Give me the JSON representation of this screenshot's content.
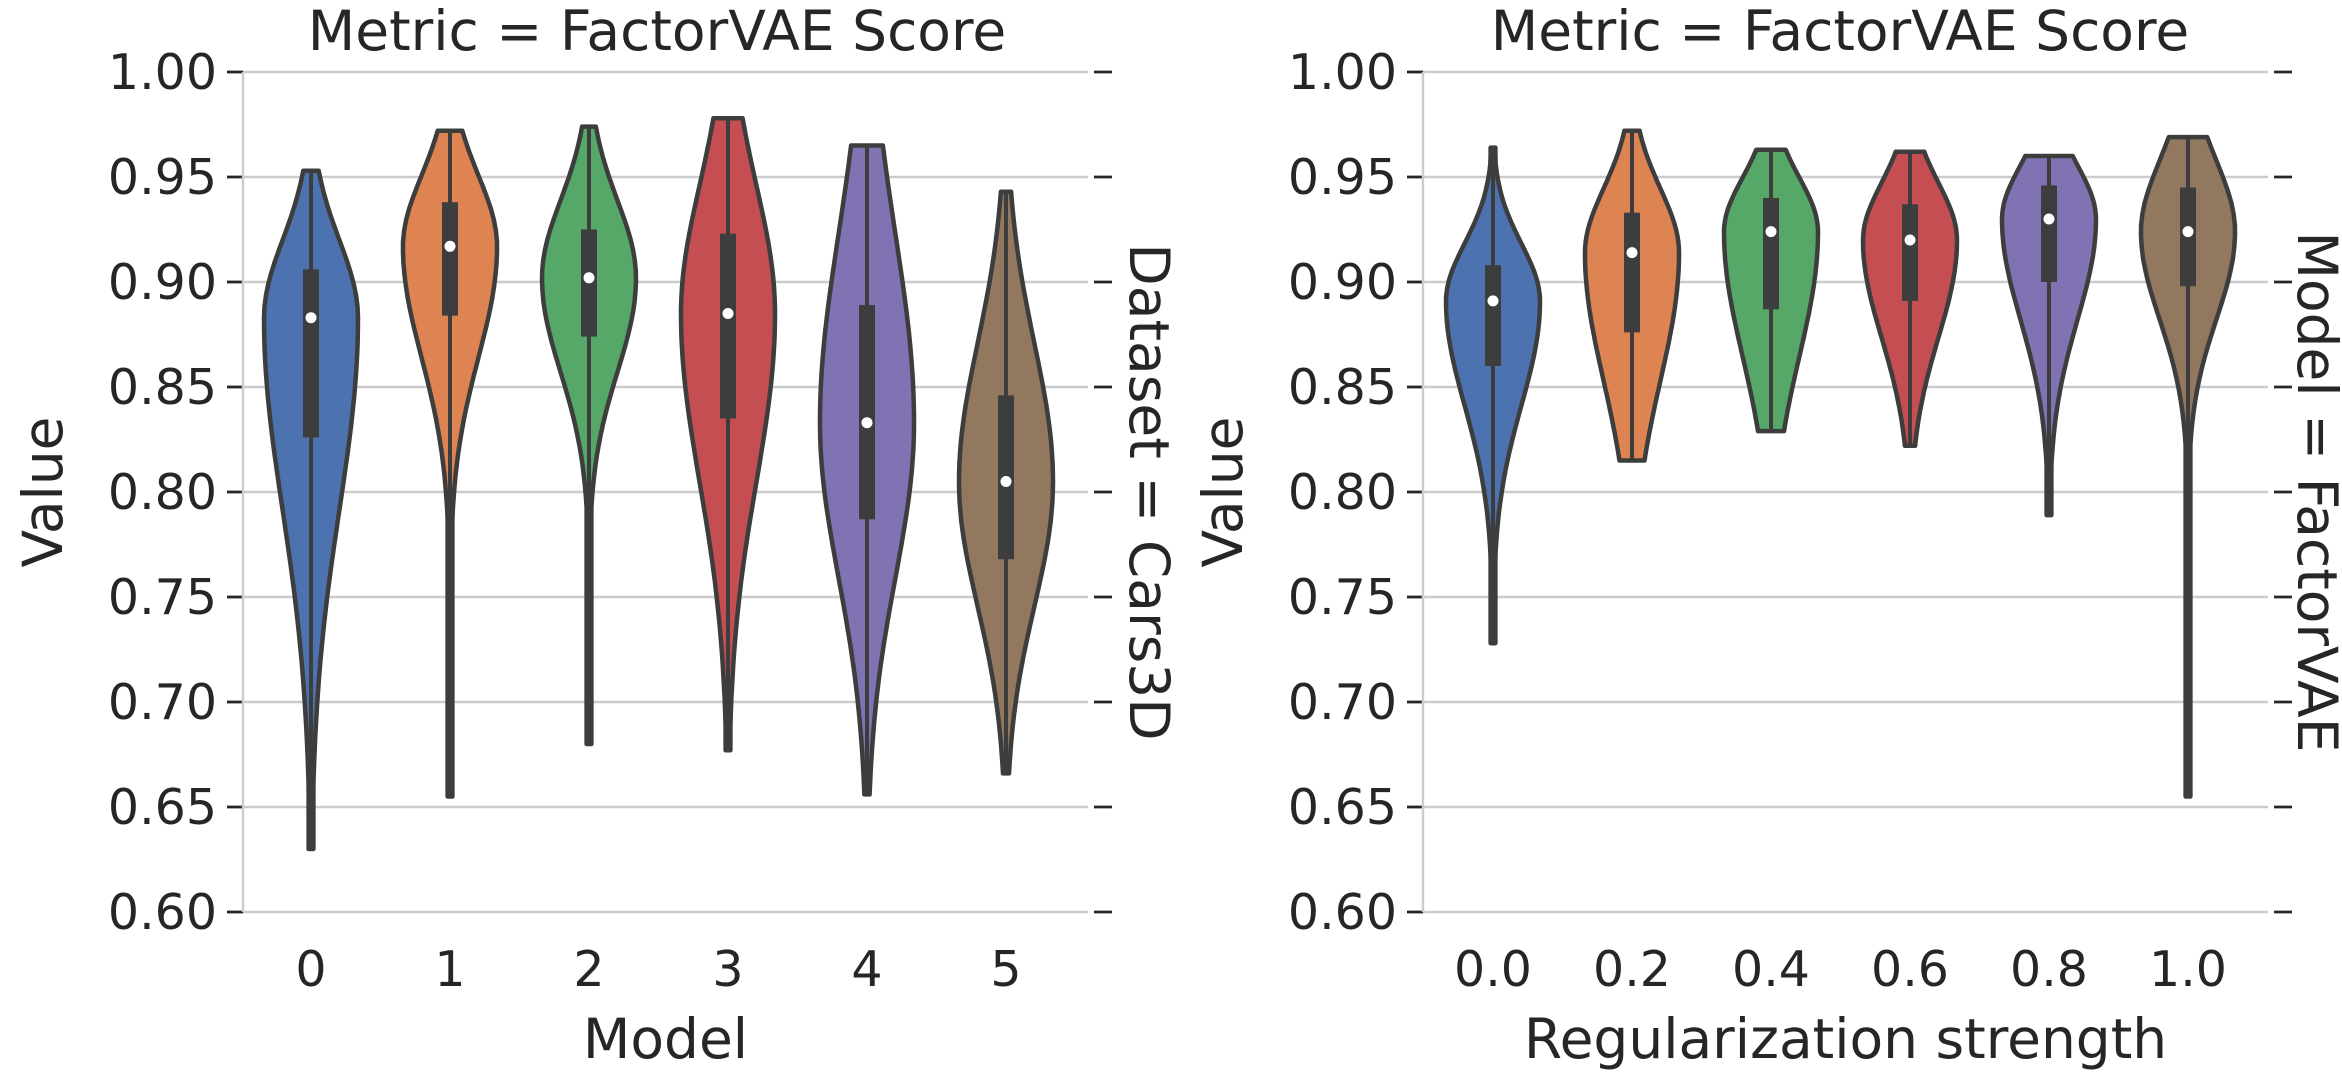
{
  "chart_data": [
    {
      "type": "violin",
      "title": "Metric = FactorVAE Score",
      "xlabel": "Model",
      "ylabel": "Value",
      "row_label": "Dataset = Cars3D",
      "ylim": [
        0.6,
        1.0
      ],
      "y_ticks": [
        "0.60",
        "0.65",
        "0.70",
        "0.75",
        "0.80",
        "0.85",
        "0.90",
        "0.95",
        "1.00"
      ],
      "grid": "horizontal",
      "categories": [
        "0",
        "1",
        "2",
        "3",
        "4",
        "5"
      ],
      "colors": [
        "#4c72b0",
        "#dd8452",
        "#55a868",
        "#c44e52",
        "#8172b3",
        "#937860"
      ],
      "series": [
        {
          "category": "0",
          "min": 0.63,
          "q1": 0.826,
          "median": 0.883,
          "q3": 0.906,
          "max": 0.953
        },
        {
          "category": "1",
          "min": 0.655,
          "q1": 0.884,
          "median": 0.917,
          "q3": 0.938,
          "max": 0.972
        },
        {
          "category": "2",
          "min": 0.68,
          "q1": 0.874,
          "median": 0.902,
          "q3": 0.925,
          "max": 0.974
        },
        {
          "category": "3",
          "min": 0.677,
          "q1": 0.835,
          "median": 0.885,
          "q3": 0.923,
          "max": 0.978
        },
        {
          "category": "4",
          "min": 0.656,
          "q1": 0.787,
          "median": 0.833,
          "q3": 0.889,
          "max": 0.965
        },
        {
          "category": "5",
          "min": 0.666,
          "q1": 0.768,
          "median": 0.805,
          "q3": 0.846,
          "max": 0.943
        }
      ]
    },
    {
      "type": "violin",
      "title": "Metric = FactorVAE Score",
      "xlabel": "Regularization strength",
      "ylabel": "Value",
      "row_label": "Model = FactorVAE",
      "ylim": [
        0.6,
        1.0
      ],
      "y_ticks": [
        "0.60",
        "0.65",
        "0.70",
        "0.75",
        "0.80",
        "0.85",
        "0.90",
        "0.95",
        "1.00"
      ],
      "grid": "horizontal",
      "categories": [
        "0.0",
        "0.2",
        "0.4",
        "0.6",
        "0.8",
        "1.0"
      ],
      "colors": [
        "#4c72b0",
        "#dd8452",
        "#55a868",
        "#c44e52",
        "#8172b3",
        "#937860"
      ],
      "series": [
        {
          "category": "0.0",
          "min": 0.728,
          "q1": 0.86,
          "median": 0.891,
          "q3": 0.908,
          "max": 0.964
        },
        {
          "category": "0.2",
          "min": 0.815,
          "q1": 0.876,
          "median": 0.914,
          "q3": 0.933,
          "max": 0.972
        },
        {
          "category": "0.4",
          "min": 0.829,
          "q1": 0.887,
          "median": 0.924,
          "q3": 0.94,
          "max": 0.963
        },
        {
          "category": "0.6",
          "min": 0.822,
          "q1": 0.891,
          "median": 0.92,
          "q3": 0.937,
          "max": 0.962
        },
        {
          "category": "0.8",
          "min": 0.789,
          "q1": 0.9,
          "median": 0.93,
          "q3": 0.946,
          "max": 0.96
        },
        {
          "category": "1.0",
          "min": 0.655,
          "q1": 0.898,
          "median": 0.924,
          "q3": 0.945,
          "max": 0.969
        }
      ]
    }
  ]
}
